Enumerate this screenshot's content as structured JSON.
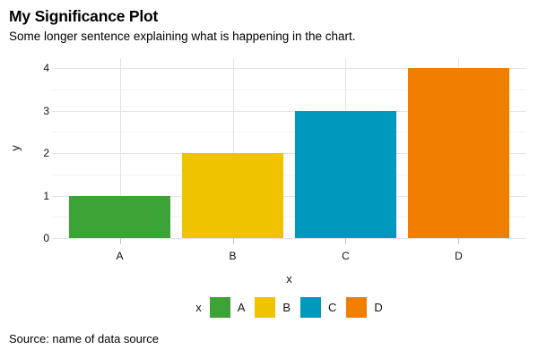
{
  "header": {
    "title": "My Significance Plot",
    "subtitle": "Some longer sentence explaining what is happening in the chart."
  },
  "footer": {
    "source": "Source: name of data source"
  },
  "chart_data": {
    "type": "bar",
    "title": "My Significance Plot",
    "subtitle": "Some longer sentence explaining what is happening in the chart.",
    "categories": [
      "A",
      "B",
      "C",
      "D"
    ],
    "values": [
      1,
      2,
      3,
      4
    ],
    "bar_colors": [
      "#3CA437",
      "#F0C300",
      "#0099BD",
      "#F07E00"
    ],
    "xlabel": "x",
    "ylabel": "y",
    "ylim": [
      0,
      4
    ],
    "yticks": [
      0,
      1,
      2,
      3,
      4
    ],
    "yticks_minor": [
      0.5,
      1.5,
      2.5,
      3.5
    ],
    "grid": "horizontal major+minor, vertical major at category centers",
    "legend": {
      "title": "x",
      "position": "bottom",
      "entries": [
        "A",
        "B",
        "C",
        "D"
      ]
    },
    "source": "Source: name of data source"
  },
  "style_colors": {
    "grid_major": "#E3E3E3",
    "grid_minor": "#F1F1F1",
    "axis_tick": "#C6C6C6",
    "background": "#FFFFFF",
    "text": "#000000"
  }
}
